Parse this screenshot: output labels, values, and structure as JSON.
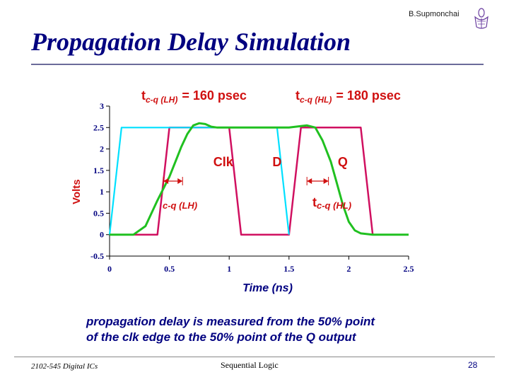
{
  "header": {
    "author": "B.Supmonchai",
    "title": "Propagation Delay Simulation"
  },
  "caption": {
    "line1": "propagation delay is measured from the 50% point",
    "line2": "of the clk edge to the 50% point of the Q output"
  },
  "footer": {
    "course": "2102-545 Digital ICs",
    "topic": "Sequential Logic",
    "page": "28"
  },
  "colors": {
    "title": "#000080",
    "axis_text": "#000080",
    "annotation": "#d01010",
    "clk": "#d01060",
    "d": "#00e0ff",
    "q": "#20c020",
    "arrow": "#d01010"
  },
  "chart_data": {
    "type": "line",
    "xlabel": "Time (ns)",
    "ylabel": "Volts",
    "xlim": [
      0,
      2.5
    ],
    "ylim": [
      -0.5,
      3
    ],
    "x_ticks": [
      "0",
      "0.5",
      "1",
      "1.5",
      "2",
      "2.5"
    ],
    "y_ticks": [
      "-0.5",
      "0",
      "0.5",
      "1",
      "1.5",
      "2",
      "2.5",
      "3"
    ],
    "grid": false,
    "series": [
      {
        "name": "Clk",
        "x": [
          0.0,
          0.4,
          0.5,
          1.0,
          1.1,
          1.5,
          1.6,
          2.1,
          2.2,
          2.5
        ],
        "y": [
          0.0,
          0.0,
          2.5,
          2.5,
          0.0,
          0.0,
          2.5,
          2.5,
          0.0,
          0.0
        ]
      },
      {
        "name": "D",
        "x": [
          0.0,
          0.1,
          1.4,
          1.5
        ],
        "y": [
          0.0,
          2.5,
          2.5,
          0.0
        ]
      },
      {
        "name": "Q",
        "x": [
          0.0,
          0.2,
          0.3,
          0.4,
          0.5,
          0.55,
          0.6,
          0.65,
          0.7,
          0.75,
          0.8,
          0.85,
          0.9,
          0.95,
          1.0,
          1.1,
          1.2,
          1.3,
          1.5,
          1.65,
          1.72,
          1.78,
          1.85,
          1.9,
          1.95,
          2.0,
          2.05,
          2.1,
          2.2,
          2.5
        ],
        "y": [
          0.0,
          0.0,
          0.2,
          0.8,
          1.35,
          1.7,
          2.05,
          2.35,
          2.55,
          2.6,
          2.58,
          2.52,
          2.5,
          2.5,
          2.5,
          2.5,
          2.5,
          2.5,
          2.5,
          2.55,
          2.5,
          2.2,
          1.7,
          1.2,
          0.7,
          0.3,
          0.1,
          0.03,
          0.0,
          0.0
        ]
      }
    ],
    "annotations": [
      {
        "text": "Clk",
        "x": 0.95,
        "y": 1.6
      },
      {
        "text": "D",
        "x": 1.4,
        "y": 1.6
      },
      {
        "text": "Q",
        "x": 1.95,
        "y": 1.6
      }
    ],
    "measurements": [
      {
        "label_main": "t",
        "label_sub": "c-q (LH)",
        "value": "= 160 psec",
        "from_x": 0.45,
        "to_x": 0.61,
        "y": 1.25
      },
      {
        "label_main": "t",
        "label_sub": "c-q (HL)",
        "value": "= 180 psec",
        "from_x": 1.65,
        "to_x": 1.83,
        "y": 1.25
      }
    ],
    "measure_labels": [
      {
        "main": "",
        "sub": "c-q (LH)"
      },
      {
        "main": "t",
        "sub": "c-q (HL)"
      }
    ]
  }
}
